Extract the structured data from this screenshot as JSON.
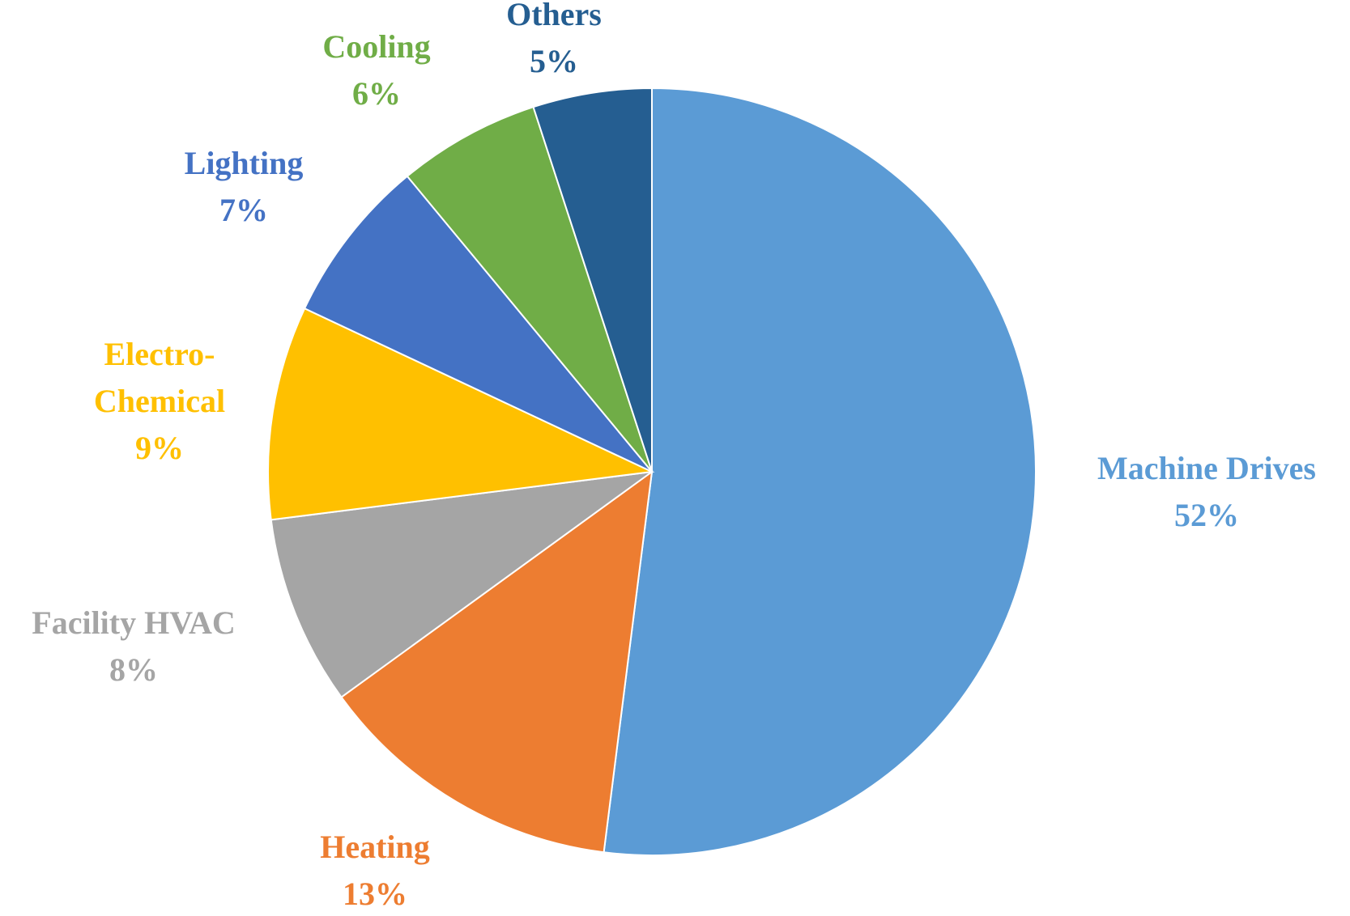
{
  "chart_data": {
    "type": "pie",
    "categories": [
      "Machine Drives",
      "Heating",
      "Facility HVAC",
      "Electro-\nChemical",
      "Lighting",
      "Cooling",
      "Others"
    ],
    "values": [
      52,
      13,
      8,
      9,
      7,
      6,
      5
    ],
    "value_labels": [
      "52%",
      "13%",
      "8%",
      "9%",
      "7%",
      "6%",
      "5%"
    ],
    "colors": [
      "#5b9bd5",
      "#ed7d31",
      "#a5a5a5",
      "#ffc000",
      "#4472c4",
      "#70ad47",
      "#255e91"
    ]
  }
}
